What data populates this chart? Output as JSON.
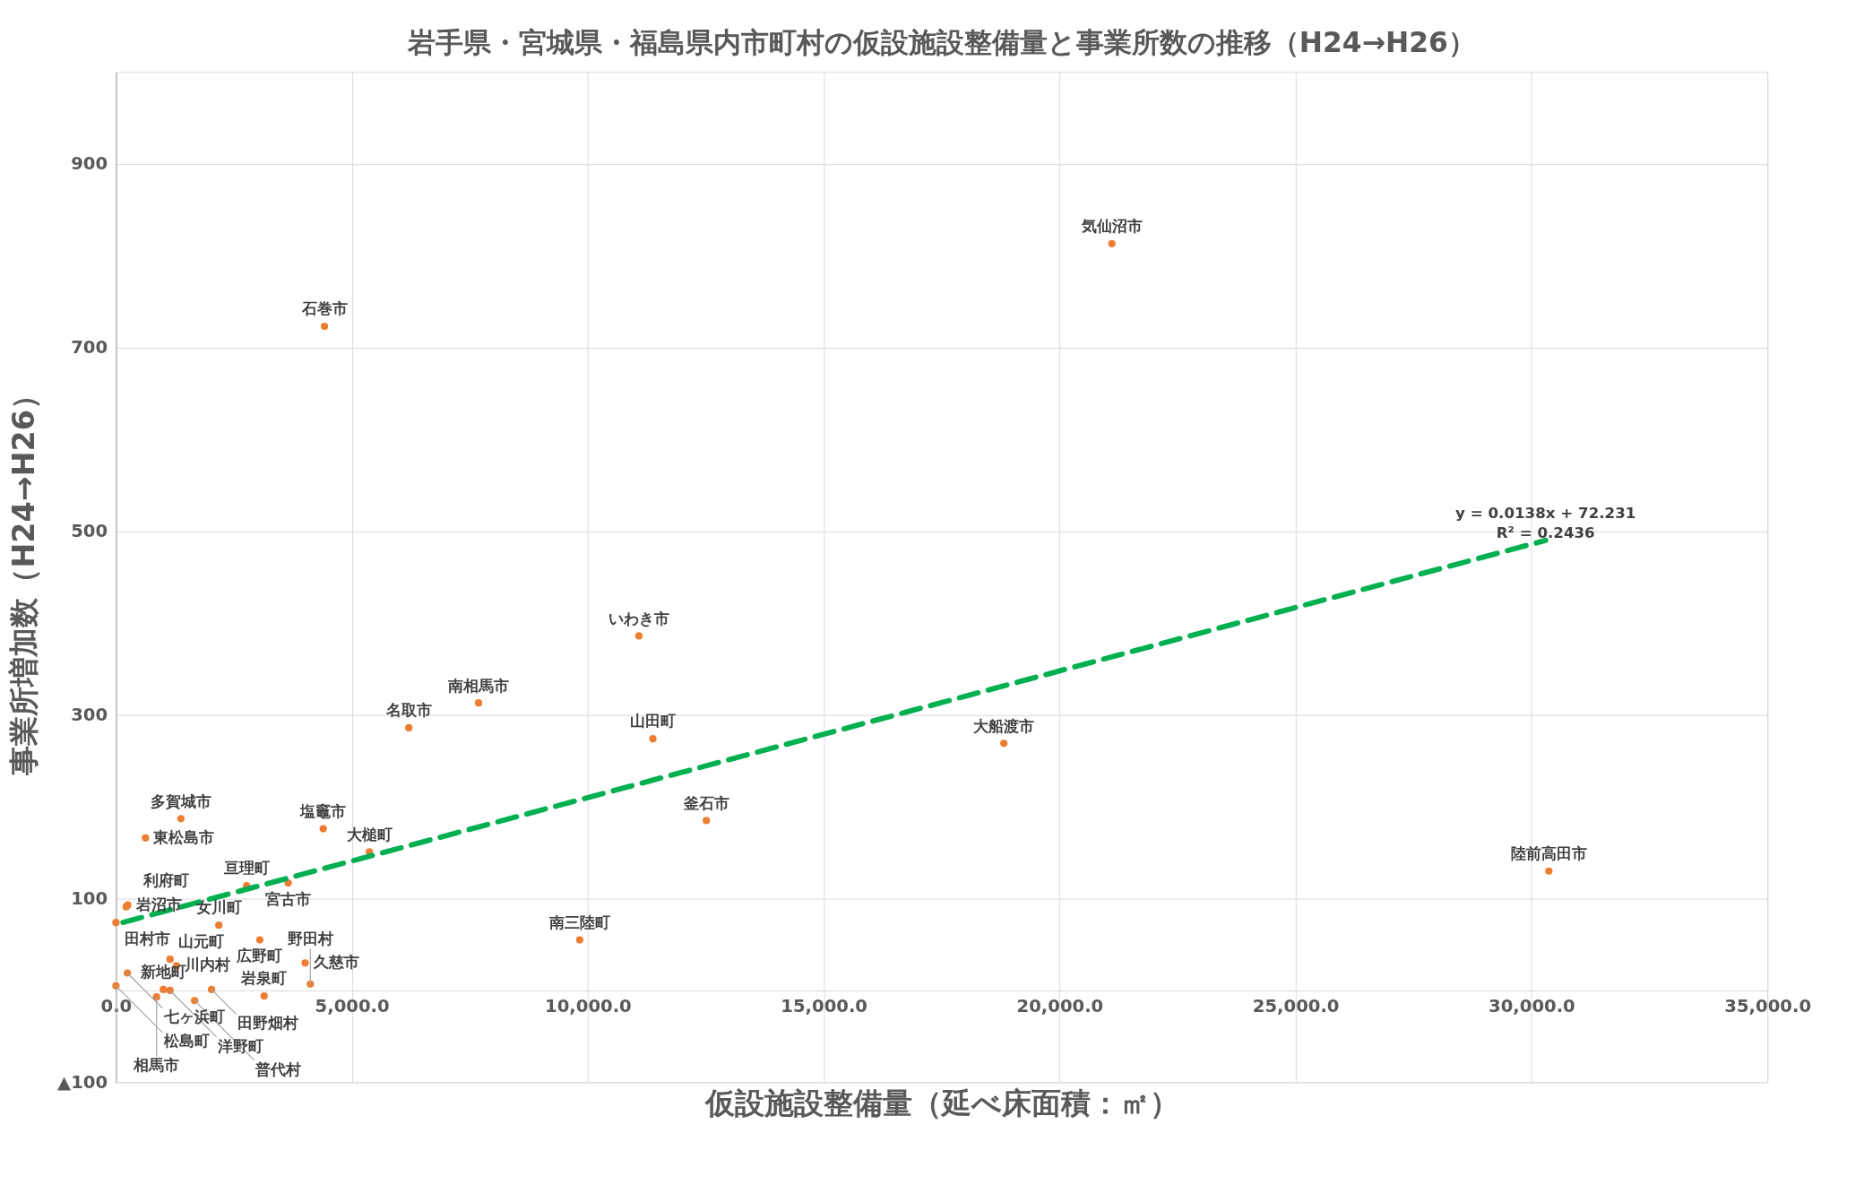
{
  "chart_data": {
    "type": "scatter",
    "title": "岩手県・宮城県・福島県内市町村の仮設施設整備量と事業所数の推移（H24→H26）",
    "xlabel": "仮設施設整備量（延べ床面積：㎡）",
    "ylabel": "事業所増加数（H24→H26）",
    "xlim": [
      0,
      35000
    ],
    "ylim": [
      -100,
      1000
    ],
    "xticks": [
      {
        "value": 0,
        "label": "0.0"
      },
      {
        "value": 5000,
        "label": "5,000.0"
      },
      {
        "value": 10000,
        "label": "10,000.0"
      },
      {
        "value": 15000,
        "label": "15,000.0"
      },
      {
        "value": 20000,
        "label": "20,000.0"
      },
      {
        "value": 25000,
        "label": "25,000.0"
      },
      {
        "value": 30000,
        "label": "30,000.0"
      },
      {
        "value": 35000,
        "label": "35,000.0"
      }
    ],
    "yticks": [
      {
        "value": -100,
        "label": "▲100"
      },
      100,
      300,
      500,
      700,
      900
    ],
    "grid": true,
    "marker": "circle",
    "series": [
      {
        "color": "#ed7d31",
        "x": [
          4420,
          21108,
          11084,
          7685,
          6207,
          11379,
          18818,
          12512,
          30369,
          9828,
          626,
          1376,
          4393,
          5372,
          2770,
          3650,
          250,
          217,
          0,
          2181,
          3048,
          1146,
          1283,
          242,
          0,
          1146,
          1004,
          861,
          1667,
          2026,
          3141,
          4009,
          4120
        ],
        "values": [
          723,
          813,
          386,
          313,
          286,
          274,
          269,
          185,
          130,
          55,
          166,
          187,
          176,
          151,
          114,
          117,
          93,
          91,
          74,
          71,
          55,
          34,
          27,
          19,
          5,
          0,
          1,
          -7,
          -11,
          1,
          -6,
          30,
          7
        ]
      },
      {
        "type": "line",
        "color": "#00b050",
        "line_style": "dashed",
        "marker": "none",
        "x": [
          0,
          30300
        ],
        "values": [
          72,
          490
        ]
      }
    ],
    "annotations": [
      {
        "text": "石巻市",
        "x": 4420,
        "y": 723
      },
      {
        "text": "気仙沼市",
        "x": 21108,
        "y": 813
      },
      {
        "text": "いわき市",
        "x": 11084,
        "y": 386
      },
      {
        "text": "南相馬市",
        "x": 7685,
        "y": 313
      },
      {
        "text": "名取市",
        "x": 6207,
        "y": 286
      },
      {
        "text": "山田町",
        "x": 11379,
        "y": 274
      },
      {
        "text": "大船渡市",
        "x": 18818,
        "y": 269
      },
      {
        "text": "釜石市",
        "x": 12512,
        "y": 185
      },
      {
        "text": "陸前高田市",
        "x": 30369,
        "y": 130
      },
      {
        "text": "南三陸町",
        "x": 9828,
        "y": 55
      },
      {
        "text": "東松島市",
        "x": 626,
        "y": 166
      },
      {
        "text": "多賀城市",
        "x": 1376,
        "y": 187
      },
      {
        "text": "塩竈市",
        "x": 4393,
        "y": 176
      },
      {
        "text": "大槌町",
        "x": 5372,
        "y": 151
      },
      {
        "text": "亘理町",
        "x": 2770,
        "y": 114
      },
      {
        "text": "宮古市",
        "x": 3650,
        "y": 117
      },
      {
        "text": "岩沼市",
        "x": 250,
        "y": 93
      },
      {
        "text": "利府町",
        "x": 217,
        "y": 91
      },
      {
        "text": "田村市",
        "x": 0,
        "y": 74
      },
      {
        "text": "女川町",
        "x": 2181,
        "y": 71
      },
      {
        "text": "広野町",
        "x": 3048,
        "y": 55
      },
      {
        "text": "山元町",
        "x": 1146,
        "y": 34
      },
      {
        "text": "川内村",
        "x": 1283,
        "y": 27
      },
      {
        "text": "七ヶ浜町",
        "x": 242,
        "y": 19
      },
      {
        "text": "松島町",
        "x": 0,
        "y": 5
      },
      {
        "text": "洋野町",
        "x": 1146,
        "y": 0
      },
      {
        "text": "新地町",
        "x": 1004,
        "y": 1
      },
      {
        "text": "相馬市",
        "x": 861,
        "y": -7
      },
      {
        "text": "普代村",
        "x": 1667,
        "y": -11
      },
      {
        "text": "田野畑村",
        "x": 2026,
        "y": 1
      },
      {
        "text": "岩泉町",
        "x": 3141,
        "y": -6
      },
      {
        "text": "久慈市",
        "x": 4009,
        "y": 30
      },
      {
        "text": "野田村",
        "x": 4120,
        "y": 7
      },
      {
        "text": "y = 0.0138x + 72.231\nR² = 0.2436",
        "x": 30300,
        "y": 490
      }
    ]
  }
}
